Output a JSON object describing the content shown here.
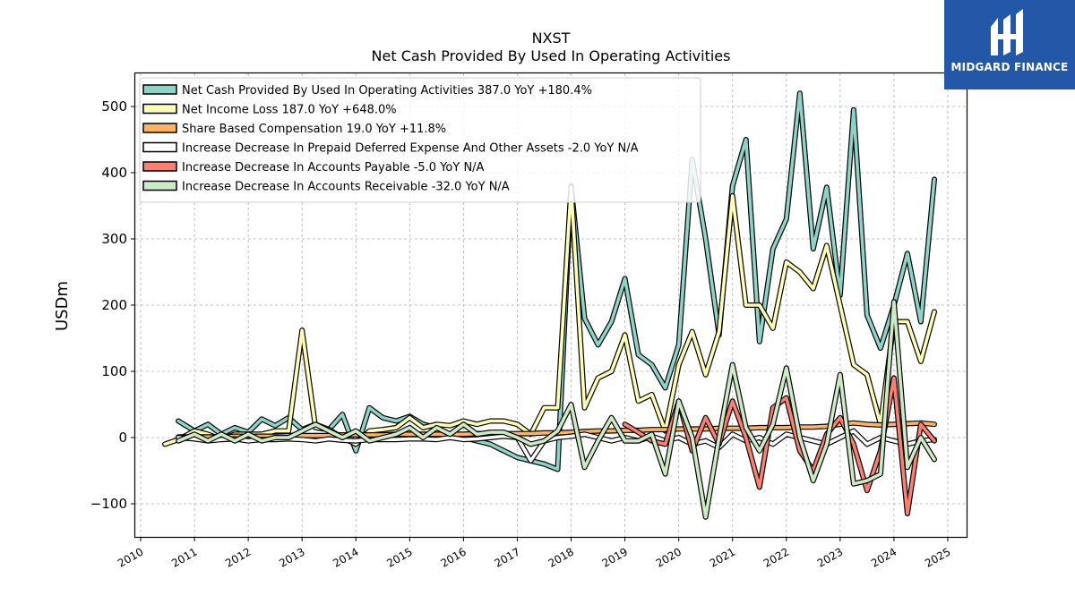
{
  "logo": {
    "text": "MIDGARD FINANCE"
  },
  "chart_data": {
    "type": "line",
    "title": "NXST",
    "subtitle": "Net Cash Provided By Used In Operating Activities",
    "xlabel": "",
    "ylabel": "USDm",
    "xlim": [
      2009.9,
      2025.35
    ],
    "ylim": [
      -150,
      550
    ],
    "x_ticks": [
      2010,
      2011,
      2012,
      2013,
      2014,
      2015,
      2016,
      2017,
      2018,
      2019,
      2020,
      2021,
      2022,
      2023,
      2024,
      2025
    ],
    "y_ticks": [
      -100,
      0,
      100,
      200,
      300,
      400,
      500
    ],
    "y_tick_labels": [
      "−100",
      "0",
      "100",
      "200",
      "300",
      "400",
      "500"
    ],
    "grid": true,
    "legend_position": "top-left",
    "series": [
      {
        "name": "Net Cash Provided By Used In Operating Activities",
        "legend": "Net Cash Provided By Used In Operating Activities  387.0 YoY +180.4%",
        "color": "#8dd3c7",
        "x": [
          2010.7,
          2011.0,
          2011.25,
          2011.5,
          2011.75,
          2012.0,
          2012.25,
          2012.5,
          2012.75,
          2013.0,
          2013.25,
          2013.5,
          2013.75,
          2014.0,
          2014.25,
          2014.5,
          2014.75,
          2015.0,
          2015.25,
          2015.5,
          2015.75,
          2016.0,
          2016.25,
          2016.5,
          2016.75,
          2017.0,
          2017.25,
          2017.5,
          2017.75,
          2018.0,
          2018.25,
          2018.5,
          2018.75,
          2019.0,
          2019.25,
          2019.5,
          2019.75,
          2020.0,
          2020.25,
          2020.5,
          2020.75,
          2021.0,
          2021.25,
          2021.5,
          2021.75,
          2022.0,
          2022.25,
          2022.5,
          2022.75,
          2023.0,
          2023.25,
          2023.5,
          2023.75,
          2024.0,
          2024.25,
          2024.5,
          2024.75
        ],
        "y": [
          25,
          10,
          20,
          5,
          15,
          8,
          28,
          18,
          30,
          12,
          20,
          12,
          35,
          -20,
          45,
          30,
          25,
          32,
          20,
          15,
          5,
          0,
          -5,
          -10,
          -20,
          -30,
          -35,
          -40,
          -48,
          380,
          180,
          140,
          175,
          240,
          125,
          110,
          75,
          140,
          420,
          300,
          155,
          380,
          450,
          145,
          285,
          330,
          520,
          285,
          378,
          215,
          495,
          185,
          135,
          200,
          278,
          175,
          390
        ]
      },
      {
        "name": "Net Income Loss",
        "legend": "Net Income Loss  187.0 YoY +648.0%",
        "color": "#ffffb3",
        "x": [
          2010.45,
          2010.7,
          2011.0,
          2011.25,
          2011.5,
          2011.75,
          2012.0,
          2012.25,
          2012.5,
          2012.75,
          2013.0,
          2013.25,
          2013.5,
          2013.75,
          2014.0,
          2014.25,
          2014.5,
          2014.75,
          2015.0,
          2015.25,
          2015.5,
          2015.75,
          2016.0,
          2016.25,
          2016.5,
          2016.75,
          2017.0,
          2017.25,
          2017.5,
          2017.75,
          2018.0,
          2018.25,
          2018.5,
          2018.75,
          2019.0,
          2019.25,
          2019.5,
          2019.75,
          2020.0,
          2020.25,
          2020.5,
          2020.75,
          2021.0,
          2021.25,
          2021.5,
          2021.75,
          2022.0,
          2022.25,
          2022.5,
          2022.75,
          2023.0,
          2023.25,
          2023.5,
          2023.75,
          2024.0,
          2024.25,
          2024.5,
          2024.75
        ],
        "y": [
          -10,
          -3,
          10,
          5,
          -3,
          5,
          5,
          5,
          10,
          10,
          162,
          15,
          12,
          0,
          -10,
          10,
          12,
          15,
          30,
          15,
          20,
          18,
          25,
          20,
          25,
          25,
          20,
          5,
          45,
          45,
          378,
          45,
          90,
          100,
          155,
          55,
          65,
          10,
          110,
          160,
          95,
          160,
          365,
          200,
          200,
          165,
          265,
          250,
          225,
          290,
          200,
          110,
          95,
          20,
          175,
          175,
          115,
          190
        ]
      },
      {
        "name": "Share Based Compensation",
        "legend": "Share Based Compensation  19.0 YoY +11.8%",
        "color": "#fdb462",
        "x": [
          2010.7,
          2011.0,
          2011.25,
          2011.5,
          2011.75,
          2012.0,
          2012.25,
          2012.5,
          2012.75,
          2013.0,
          2013.25,
          2013.5,
          2013.75,
          2014.0,
          2014.25,
          2014.5,
          2014.75,
          2015.0,
          2015.25,
          2015.5,
          2015.75,
          2016.0,
          2016.25,
          2016.5,
          2016.75,
          2017.0,
          2017.25,
          2017.5,
          2017.75,
          2018.0,
          2018.25,
          2018.5,
          2018.75,
          2019.0,
          2019.25,
          2019.5,
          2019.75,
          2020.0,
          2020.25,
          2020.5,
          2020.75,
          2021.0,
          2021.25,
          2021.5,
          2021.75,
          2022.0,
          2022.25,
          2022.5,
          2022.75,
          2023.0,
          2023.25,
          2023.5,
          2023.75,
          2024.0,
          2024.25,
          2024.5,
          2024.75
        ],
        "y": [
          1,
          1,
          1,
          1,
          2,
          2,
          2,
          2,
          3,
          3,
          3,
          3,
          4,
          4,
          4,
          4,
          5,
          5,
          5,
          5,
          5,
          5,
          6,
          6,
          6,
          6,
          6,
          7,
          7,
          8,
          9,
          10,
          10,
          11,
          11,
          12,
          12,
          13,
          13,
          13,
          14,
          14,
          14,
          15,
          15,
          15,
          16,
          16,
          17,
          20,
          22,
          20,
          19,
          20,
          21,
          22,
          20
        ]
      },
      {
        "name": "Increase Decrease In Prepaid Deferred Expense And Other Assets",
        "legend": "Increase Decrease In Prepaid Deferred Expense And Other Assets  -2.0 YoY N/A",
        "color": "#ffffff",
        "x": [
          2010.7,
          2011.0,
          2011.25,
          2011.5,
          2011.75,
          2012.0,
          2012.25,
          2012.5,
          2012.75,
          2013.0,
          2013.25,
          2013.5,
          2013.75,
          2014.0,
          2014.25,
          2014.5,
          2014.75,
          2015.0,
          2015.25,
          2015.5,
          2015.75,
          2016.0,
          2016.25,
          2016.5,
          2016.75,
          2017.0,
          2017.25,
          2017.5,
          2017.75,
          2018.0,
          2018.25,
          2018.5,
          2018.75,
          2019.0,
          2019.25,
          2019.5,
          2019.75,
          2020.0,
          2020.25,
          2020.5,
          2020.75,
          2021.0,
          2021.25,
          2021.5,
          2021.75,
          2022.0,
          2022.25,
          2022.5,
          2022.75,
          2023.0,
          2023.25,
          2023.5,
          2023.75,
          2024.0,
          2024.25,
          2024.5,
          2024.75
        ],
        "y": [
          0,
          -2,
          -5,
          -3,
          -2,
          -5,
          -3,
          -3,
          -2,
          -3,
          -5,
          -2,
          -4,
          -5,
          -3,
          -3,
          -3,
          -2,
          -2,
          -3,
          0,
          -3,
          -2,
          0,
          2,
          0,
          -35,
          -5,
          0,
          2,
          5,
          0,
          -5,
          0,
          -5,
          2,
          -5,
          0,
          -10,
          -5,
          -15,
          5,
          -5,
          0,
          -10,
          5,
          0,
          -5,
          -10,
          0,
          10,
          -10,
          0,
          -5,
          -10,
          -5,
          -3
        ]
      },
      {
        "name": "Increase Decrease In Accounts Payable",
        "legend": "Increase Decrease In Accounts Payable  -5.0 YoY N/A",
        "color": "#fb8072",
        "x": [
          2019.0,
          2019.25,
          2019.5,
          2019.75,
          2020.0,
          2020.25,
          2020.5,
          2020.75,
          2021.0,
          2021.25,
          2021.5,
          2021.75,
          2022.0,
          2022.25,
          2022.5,
          2022.75,
          2023.0,
          2023.25,
          2023.5,
          2023.75,
          2024.0,
          2024.25,
          2024.5,
          2024.75
        ],
        "y": [
          20,
          8,
          -5,
          -10,
          55,
          -20,
          30,
          -10,
          55,
          0,
          -75,
          45,
          60,
          -20,
          -50,
          5,
          30,
          -10,
          -80,
          -20,
          90,
          -115,
          20,
          -5
        ]
      },
      {
        "name": "Increase Decrease In Accounts Receivable",
        "legend": "Increase Decrease In Accounts Receivable  -32.0 YoY N/A",
        "color": "#ccebc5",
        "x": [
          2010.7,
          2011.0,
          2011.25,
          2011.5,
          2011.75,
          2012.0,
          2012.25,
          2012.5,
          2012.75,
          2013.0,
          2013.25,
          2013.5,
          2013.75,
          2014.0,
          2014.25,
          2014.5,
          2014.75,
          2015.0,
          2015.25,
          2015.5,
          2015.75,
          2016.0,
          2016.25,
          2016.5,
          2016.75,
          2017.0,
          2017.25,
          2017.5,
          2017.75,
          2018.0,
          2018.25,
          2018.5,
          2018.75,
          2019.0,
          2019.25,
          2019.5,
          2019.75,
          2020.0,
          2020.25,
          2020.5,
          2020.75,
          2021.0,
          2021.25,
          2021.5,
          2021.75,
          2022.0,
          2022.25,
          2022.5,
          2022.75,
          2023.0,
          2023.25,
          2023.5,
          2023.75,
          2024.0,
          2024.25,
          2024.5,
          2024.75
        ],
        "y": [
          -5,
          5,
          -5,
          5,
          -5,
          5,
          -5,
          0,
          0,
          10,
          20,
          10,
          0,
          10,
          -5,
          0,
          5,
          15,
          0,
          15,
          5,
          20,
          5,
          8,
          8,
          0,
          -10,
          -5,
          10,
          50,
          -45,
          -5,
          30,
          -5,
          -5,
          5,
          -55,
          55,
          0,
          -120,
          0,
          110,
          15,
          -20,
          20,
          105,
          0,
          -65,
          -10,
          95,
          -70,
          -65,
          -55,
          205,
          -45,
          0,
          -33
        ]
      }
    ]
  }
}
